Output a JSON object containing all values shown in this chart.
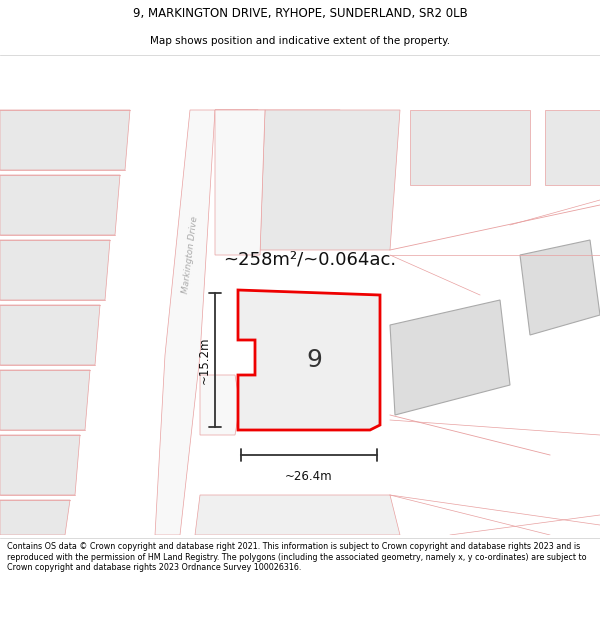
{
  "title_line1": "9, MARKINGTON DRIVE, RYHOPE, SUNDERLAND, SR2 0LB",
  "title_line2": "Map shows position and indicative extent of the property.",
  "area_label": "~258m²/~0.064ac.",
  "width_label": "~26.4m",
  "height_label": "~15.2m",
  "number_label": "9",
  "road_label": "Markington Drive",
  "footer_text": "Contains OS data © Crown copyright and database right 2021. This information is subject to Crown copyright and database rights 2023 and is reproduced with the permission of HM Land Registry. The polygons (including the associated geometry, namely x, y co-ordinates) are subject to Crown copyright and database rights 2023 Ordnance Survey 100026316.",
  "bg_color": "#f5f5f5",
  "title_bg": "#ffffff",
  "footer_bg": "#ffffff",
  "map_bg": "#f5f5f5",
  "road_fill": "#ffffff",
  "block_fill": "#e8e8e8",
  "road_outline": "#e8a0a0",
  "plot_outline": "#ee0000",
  "plot_fill": "#efefef",
  "dim_color": "#333333"
}
